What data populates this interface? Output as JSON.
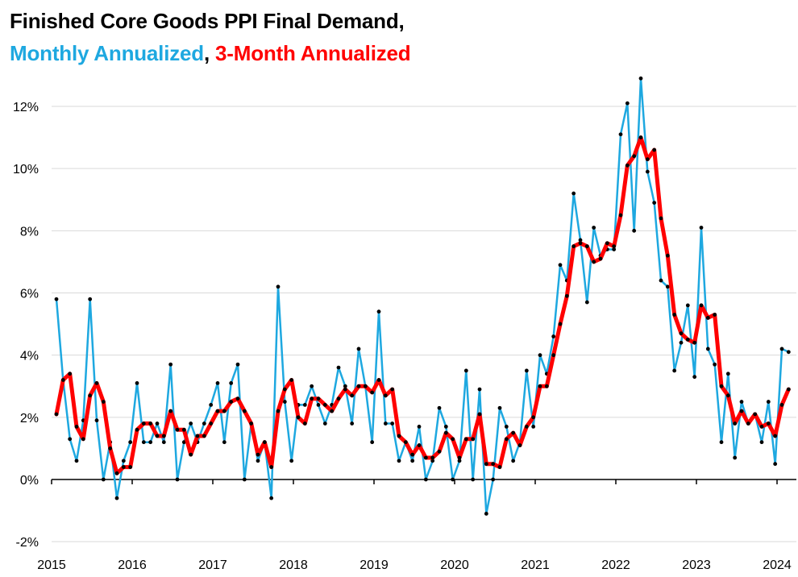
{
  "chart_data": {
    "type": "line",
    "title": "Finished Core Goods PPI Final Demand,",
    "subtitle": {
      "monthly_label": "Monthly Annualized",
      "separator": ", ",
      "three_month_label": "3-Month Annualized"
    },
    "xlabel": "",
    "ylabel": "",
    "ylim": [
      -2,
      13
    ],
    "y_ticks": [
      -2,
      0,
      2,
      4,
      6,
      8,
      10,
      12
    ],
    "y_tick_labels": [
      "-2%",
      "0%",
      "2%",
      "4%",
      "6%",
      "8%",
      "10%",
      "12%"
    ],
    "x_ticks": [
      2015,
      2016,
      2017,
      2018,
      2019,
      2020,
      2021,
      2022,
      2023,
      2024
    ],
    "x_tick_labels": [
      "2015",
      "2016",
      "2017",
      "2018",
      "2019",
      "2020",
      "2021",
      "2022",
      "2023",
      "2024"
    ],
    "grid": "horizontal",
    "x_start": "2015-01",
    "x_step_months": 1,
    "series": [
      {
        "name": "Monthly Annualized",
        "color": "#1ea8e0",
        "values": [
          5.8,
          3.2,
          1.3,
          0.6,
          1.9,
          5.8,
          1.9,
          0.0,
          1.2,
          -0.6,
          0.6,
          1.2,
          3.1,
          1.2,
          1.2,
          1.8,
          1.2,
          3.7,
          0.0,
          1.2,
          1.8,
          1.2,
          1.8,
          2.4,
          3.1,
          1.2,
          3.1,
          3.7,
          0.0,
          1.8,
          0.6,
          1.2,
          -0.6,
          6.2,
          2.5,
          0.6,
          2.4,
          2.4,
          3.0,
          2.4,
          1.8,
          2.4,
          3.6,
          3.0,
          1.8,
          4.2,
          3.0,
          1.2,
          5.4,
          1.8,
          1.8,
          0.6,
          1.2,
          0.6,
          1.7,
          0.0,
          0.6,
          2.3,
          1.7,
          0.0,
          0.6,
          3.5,
          0.0,
          2.9,
          -1.1,
          0.0,
          2.3,
          1.7,
          0.6,
          1.2,
          3.5,
          1.7,
          4.0,
          3.4,
          4.6,
          6.9,
          6.4,
          9.2,
          7.7,
          5.7,
          8.1,
          7.2,
          7.4,
          7.4,
          11.1,
          12.1,
          8.0,
          12.9,
          9.9,
          8.9,
          6.4,
          6.2,
          3.5,
          4.4,
          5.6,
          3.3,
          8.1,
          4.2,
          3.7,
          1.2,
          3.4,
          0.7,
          2.5,
          1.8,
          2.1,
          1.2,
          2.5,
          0.5,
          4.2,
          4.1
        ]
      },
      {
        "name": "3-Month Annualized",
        "color": "#ff0000",
        "values": [
          2.1,
          3.2,
          3.4,
          1.7,
          1.3,
          2.7,
          3.1,
          2.5,
          1.0,
          0.2,
          0.4,
          0.4,
          1.6,
          1.8,
          1.8,
          1.4,
          1.4,
          2.2,
          1.6,
          1.6,
          0.8,
          1.4,
          1.4,
          1.8,
          2.2,
          2.2,
          2.5,
          2.6,
          2.2,
          1.8,
          0.8,
          1.2,
          0.4,
          2.2,
          2.9,
          3.2,
          2.0,
          1.8,
          2.6,
          2.6,
          2.4,
          2.2,
          2.6,
          2.9,
          2.7,
          3.0,
          3.0,
          2.8,
          3.2,
          2.7,
          2.9,
          1.4,
          1.2,
          0.8,
          1.1,
          0.7,
          0.7,
          0.9,
          1.5,
          1.3,
          0.7,
          1.3,
          1.3,
          2.1,
          0.5,
          0.5,
          0.4,
          1.3,
          1.5,
          1.1,
          1.7,
          2.0,
          3.0,
          3.0,
          4.0,
          5.0,
          5.9,
          7.5,
          7.6,
          7.5,
          7.0,
          7.1,
          7.6,
          7.5,
          8.5,
          10.1,
          10.4,
          11.0,
          10.3,
          10.6,
          8.4,
          7.2,
          5.3,
          4.7,
          4.5,
          4.4,
          5.6,
          5.2,
          5.3,
          3.0,
          2.7,
          1.8,
          2.2,
          1.8,
          2.1,
          1.7,
          1.8,
          1.4,
          2.4,
          2.9
        ]
      }
    ]
  }
}
